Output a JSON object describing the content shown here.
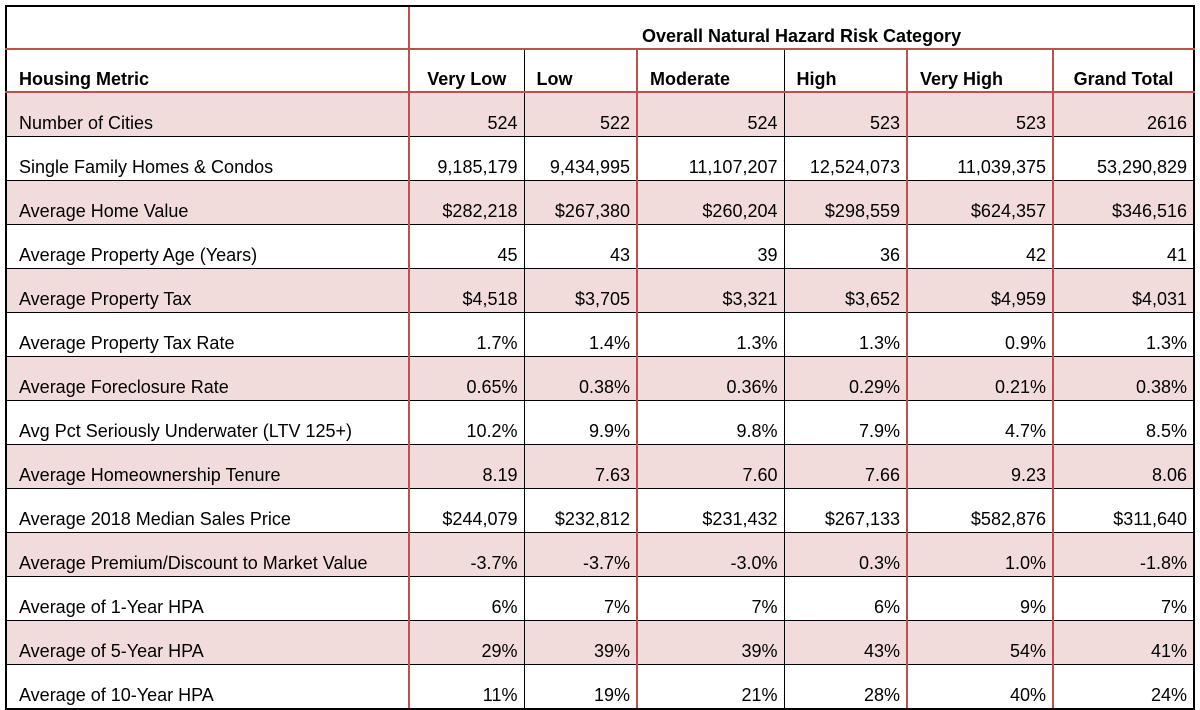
{
  "title": "Overall Natural Hazard Risk Category",
  "columns": [
    "Housing Metric",
    "Very Low",
    "Low",
    "Moderate",
    "High",
    "Very High",
    "Grand Total"
  ],
  "rows": [
    {
      "label": "Number of Cities",
      "values": [
        "524",
        "522",
        "524",
        "523",
        "523",
        "2616"
      ]
    },
    {
      "label": "Single Family Homes & Condos",
      "values": [
        "9,185,179",
        "9,434,995",
        "11,107,207",
        "12,524,073",
        "11,039,375",
        "53,290,829"
      ]
    },
    {
      "label": "Average Home Value",
      "values": [
        "$282,218",
        "$267,380",
        "$260,204",
        "$298,559",
        "$624,357",
        "$346,516"
      ]
    },
    {
      "label": "Average Property Age (Years)",
      "values": [
        "45",
        "43",
        "39",
        "36",
        "42",
        "41"
      ]
    },
    {
      "label": "Average Property Tax",
      "values": [
        "$4,518",
        "$3,705",
        "$3,321",
        "$3,652",
        "$4,959",
        "$4,031"
      ]
    },
    {
      "label": "Average Property Tax Rate",
      "values": [
        "1.7%",
        "1.4%",
        "1.3%",
        "1.3%",
        "0.9%",
        "1.3%"
      ]
    },
    {
      "label": "Average Foreclosure Rate",
      "values": [
        "0.65%",
        "0.38%",
        "0.36%",
        "0.29%",
        "0.21%",
        "0.38%"
      ]
    },
    {
      "label": "Avg Pct Seriously Underwater (LTV 125+)",
      "values": [
        "10.2%",
        "9.9%",
        "9.8%",
        "7.9%",
        "4.7%",
        "8.5%"
      ]
    },
    {
      "label": "Average Homeownership Tenure",
      "values": [
        "8.19",
        "7.63",
        "7.60",
        "7.66",
        "9.23",
        "8.06"
      ]
    },
    {
      "label": "Average 2018 Median Sales Price",
      "values": [
        "$244,079",
        "$232,812",
        "$231,432",
        "$267,133",
        "$582,876",
        "$311,640"
      ]
    },
    {
      "label": "Average Premium/Discount to Market Value",
      "values": [
        "-3.7%",
        "-3.7%",
        "-3.0%",
        "0.3%",
        "1.0%",
        "-1.8%"
      ]
    },
    {
      "label": "Average of 1-Year HPA",
      "values": [
        "6%",
        "7%",
        "7%",
        "6%",
        "9%",
        "7%"
      ]
    },
    {
      "label": "Average of 5-Year HPA",
      "values": [
        "29%",
        "39%",
        "39%",
        "43%",
        "54%",
        "41%"
      ]
    },
    {
      "label": "Average of 10-Year HPA",
      "values": [
        "11%",
        "19%",
        "21%",
        "28%",
        "40%",
        "24%"
      ]
    }
  ],
  "colors": {
    "shade": "#f2dcdb",
    "accent_border": "#c0504d"
  }
}
